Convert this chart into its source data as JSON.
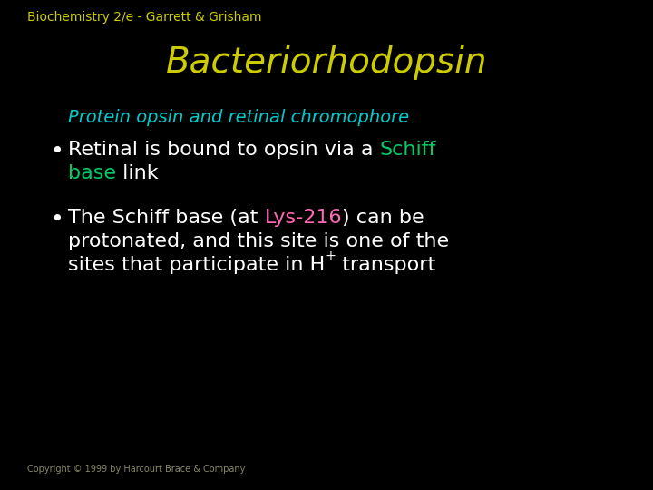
{
  "background_color": "#000000",
  "header_text": "Biochemistry 2/e - Garrett & Grisham",
  "header_color": "#cccc00",
  "header_fontsize": 10,
  "title_text": "Bacteriorhodopsin",
  "title_color": "#cccc00",
  "title_fontsize": 28,
  "subtitle_text": "Protein opsin and retinal chromophore",
  "subtitle_color": "#00cccc",
  "subtitle_fontsize": 14,
  "bullet_fontsize": 16,
  "white": "#ffffff",
  "green": "#00cc66",
  "pink": "#ff69b4",
  "copyright_text": "Copyright © 1999 by Harcourt Brace & Company",
  "copyright_color": "#888866",
  "copyright_fontsize": 7
}
